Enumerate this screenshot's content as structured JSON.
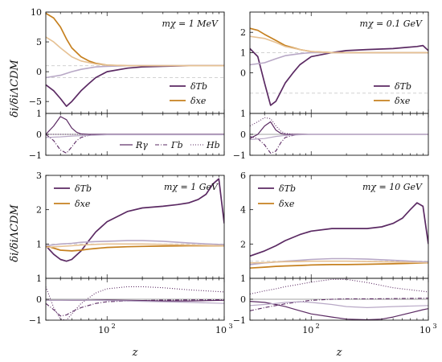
{
  "figure": {
    "ylabel_top": "δi/δiΛCDM",
    "ylabel_bottom": "δi/δiΛCDM",
    "xlabel": "z"
  },
  "colors": {
    "purple": "#5b2a63",
    "purple_light": "#b8a8c6",
    "orange": "#c6801f",
    "orange_light": "#e6c193",
    "ref_line": "#cccccc"
  },
  "chart_data": [
    {
      "type": "line",
      "panel": "top-left",
      "annotation": "mχ = 1 MeV",
      "x_scale": "log",
      "xlim": [
        30,
        1000
      ],
      "ylim": [
        -7,
        10
      ],
      "yticks": [
        -5,
        0,
        5,
        10
      ],
      "legend": "lower-right",
      "series": [
        {
          "name": "δTb",
          "style": "purple",
          "x": [
            30,
            35,
            40,
            45,
            50,
            60,
            70,
            80,
            100,
            150,
            200,
            300,
            500,
            1000
          ],
          "values": [
            -2.2,
            -3.2,
            -4.5,
            -5.8,
            -5.0,
            -3.2,
            -2.0,
            -1.0,
            0.0,
            0.6,
            0.8,
            0.9,
            1.0,
            1.0
          ]
        },
        {
          "name": "δxe",
          "style": "orange",
          "x": [
            30,
            35,
            40,
            45,
            50,
            60,
            70,
            80,
            100,
            150,
            200,
            300,
            500,
            1000
          ],
          "values": [
            9.8,
            9.0,
            7.5,
            5.5,
            4.0,
            2.5,
            1.8,
            1.4,
            1.1,
            1.0,
            1.0,
            1.0,
            1.0,
            1.0
          ]
        },
        {
          "name": "",
          "style": "purple_light",
          "x": [
            30,
            40,
            50,
            60,
            80,
            100,
            150,
            300,
            1000
          ],
          "values": [
            -1.0,
            -0.6,
            0.0,
            0.4,
            0.8,
            0.9,
            1.0,
            1.0,
            1.0
          ]
        },
        {
          "name": "",
          "style": "orange_light",
          "x": [
            30,
            35,
            40,
            50,
            60,
            80,
            100,
            150,
            300,
            1000
          ],
          "values": [
            5.8,
            5.0,
            4.0,
            2.5,
            1.8,
            1.3,
            1.1,
            1.0,
            1.0,
            1.0
          ]
        }
      ],
      "ref_lines": [
        1,
        -1
      ]
    },
    {
      "type": "line",
      "panel": "top-right",
      "annotation": "mχ = 0.1 GeV",
      "x_scale": "log",
      "xlim": [
        30,
        1000
      ],
      "ylim": [
        -2,
        3
      ],
      "yticks": [
        0,
        1,
        2
      ],
      "legend": "lower-right",
      "series": [
        {
          "name": "δTb",
          "style": "purple",
          "x": [
            30,
            35,
            40,
            45,
            50,
            60,
            70,
            80,
            100,
            150,
            200,
            300,
            500,
            800,
            900,
            1000
          ],
          "values": [
            1.2,
            0.8,
            -0.5,
            -1.6,
            -1.4,
            -0.5,
            0.0,
            0.4,
            0.8,
            1.0,
            1.1,
            1.15,
            1.2,
            1.3,
            1.35,
            1.1
          ]
        },
        {
          "name": "δxe",
          "style": "orange",
          "x": [
            30,
            35,
            40,
            50,
            60,
            80,
            100,
            150,
            200,
            300,
            1000
          ],
          "values": [
            2.2,
            2.1,
            1.9,
            1.6,
            1.35,
            1.15,
            1.05,
            1.0,
            1.0,
            1.0,
            1.0
          ]
        },
        {
          "name": "",
          "style": "purple_light",
          "x": [
            30,
            40,
            50,
            60,
            80,
            100,
            200,
            1000
          ],
          "values": [
            0.4,
            0.5,
            0.7,
            0.85,
            0.95,
            1.0,
            1.0,
            1.0
          ]
        },
        {
          "name": "",
          "style": "orange_light",
          "x": [
            30,
            40,
            50,
            60,
            80,
            100,
            150,
            1000
          ],
          "values": [
            1.8,
            1.7,
            1.5,
            1.3,
            1.15,
            1.05,
            1.0,
            1.0
          ]
        }
      ],
      "ref_lines": [
        1,
        -1
      ]
    },
    {
      "type": "line",
      "panel": "top-left-residual",
      "x_scale": "log",
      "xlim": [
        30,
        1000
      ],
      "ylim": [
        -1,
        1
      ],
      "yticks": [
        -1,
        0,
        1
      ],
      "legend": "bottom-right",
      "series": [
        {
          "name": "Rγ",
          "style": "solid",
          "x": [
            30,
            35,
            40,
            45,
            50,
            55,
            60,
            70,
            80,
            100,
            1000
          ],
          "values": [
            0.0,
            0.4,
            0.85,
            0.7,
            0.3,
            0.1,
            0.02,
            0.0,
            0.0,
            0.0,
            0.0
          ]
        },
        {
          "name": "Γb",
          "style": "dashdot",
          "x": [
            30,
            35,
            40,
            45,
            50,
            55,
            60,
            70,
            80,
            100,
            1000
          ],
          "values": [
            0.0,
            -0.3,
            -0.75,
            -0.9,
            -0.6,
            -0.3,
            -0.15,
            -0.05,
            0.0,
            0.0,
            0.0
          ]
        },
        {
          "name": "Hb",
          "style": "dotted",
          "x": [
            30,
            40,
            50,
            60,
            70,
            80,
            100,
            200,
            1000
          ],
          "values": [
            0.0,
            0.0,
            0.0,
            0.0,
            0.0,
            0.0,
            0.0,
            0.0,
            0.0
          ]
        },
        {
          "name": "",
          "style": "light",
          "x": [
            30,
            40,
            50,
            70,
            100,
            1000
          ],
          "values": [
            -0.15,
            -0.12,
            -0.08,
            -0.05,
            -0.02,
            -0.02
          ]
        }
      ]
    },
    {
      "type": "line",
      "panel": "top-right-residual",
      "x_scale": "log",
      "xlim": [
        30,
        1000
      ],
      "ylim": [
        -1,
        1
      ],
      "yticks": [
        -1,
        0,
        1
      ],
      "series": [
        {
          "name": "",
          "style": "solid",
          "x": [
            30,
            35,
            40,
            45,
            50,
            55,
            60,
            70,
            80,
            100,
            1000
          ],
          "values": [
            -0.2,
            0.0,
            0.4,
            0.6,
            0.2,
            0.05,
            0.0,
            0.0,
            0.0,
            0.0,
            0.0
          ]
        },
        {
          "name": "",
          "style": "dashdot",
          "x": [
            30,
            35,
            40,
            45,
            50,
            55,
            60,
            70,
            80,
            100,
            1000
          ],
          "values": [
            -0.1,
            -0.2,
            -0.5,
            -0.9,
            -0.8,
            -0.4,
            -0.15,
            -0.05,
            0.0,
            0.0,
            0.0
          ]
        },
        {
          "name": "",
          "style": "dotted",
          "x": [
            30,
            35,
            40,
            45,
            50,
            55,
            60,
            70,
            80,
            100,
            1000
          ],
          "values": [
            0.4,
            0.6,
            0.8,
            0.75,
            0.4,
            0.15,
            0.05,
            0.0,
            0.0,
            0.0,
            0.0
          ]
        },
        {
          "name": "",
          "style": "light",
          "x": [
            30,
            40,
            50,
            60,
            80,
            100,
            1000
          ],
          "values": [
            -0.25,
            -0.2,
            -0.1,
            -0.05,
            -0.02,
            0.0,
            0.0
          ]
        }
      ]
    },
    {
      "type": "line",
      "panel": "bottom-left",
      "annotation": "mχ = 1 GeV",
      "x_scale": "log",
      "xlim": [
        30,
        1000
      ],
      "ylim": [
        0,
        3
      ],
      "yticks": [
        1,
        2,
        3
      ],
      "legend": "upper-left",
      "series": [
        {
          "name": "δTb",
          "style": "purple",
          "x": [
            30,
            35,
            40,
            45,
            50,
            60,
            70,
            80,
            100,
            150,
            200,
            300,
            400,
            500,
            600,
            700,
            800,
            900,
            1000
          ],
          "values": [
            0.95,
            0.7,
            0.55,
            0.5,
            0.55,
            0.8,
            1.1,
            1.35,
            1.65,
            1.95,
            2.05,
            2.1,
            2.15,
            2.2,
            2.3,
            2.45,
            2.75,
            2.9,
            1.6
          ]
        },
        {
          "name": "δxe",
          "style": "orange",
          "x": [
            30,
            40,
            50,
            60,
            70,
            80,
            100,
            150,
            200,
            300,
            500,
            1000
          ],
          "values": [
            0.95,
            0.82,
            0.8,
            0.82,
            0.85,
            0.87,
            0.9,
            0.92,
            0.93,
            0.94,
            0.95,
            0.95
          ]
        },
        {
          "name": "",
          "style": "purple_light",
          "x": [
            30,
            40,
            50,
            60,
            80,
            100,
            150,
            200,
            300,
            500,
            1000
          ],
          "values": [
            0.95,
            1.0,
            1.02,
            1.05,
            1.07,
            1.08,
            1.1,
            1.1,
            1.08,
            1.03,
            0.98
          ]
        },
        {
          "name": "",
          "style": "orange_light",
          "x": [
            30,
            40,
            50,
            60,
            80,
            100,
            150,
            200,
            300,
            500,
            1000
          ],
          "values": [
            0.9,
            0.93,
            0.95,
            0.97,
            0.99,
            1.0,
            1.0,
            1.0,
            0.99,
            0.97,
            0.95
          ]
        }
      ],
      "ref_lines": [
        1
      ]
    },
    {
      "type": "line",
      "panel": "bottom-right",
      "annotation": "mχ = 10 GeV",
      "x_scale": "log",
      "xlim": [
        30,
        1000
      ],
      "ylim": [
        0,
        6
      ],
      "yticks": [
        2,
        4,
        6
      ],
      "legend": "upper-left",
      "series": [
        {
          "name": "δTb",
          "style": "purple",
          "x": [
            30,
            40,
            50,
            60,
            80,
            100,
            150,
            200,
            300,
            400,
            500,
            600,
            700,
            800,
            900,
            1000
          ],
          "values": [
            1.3,
            1.6,
            1.9,
            2.2,
            2.55,
            2.75,
            2.9,
            2.9,
            2.9,
            3.0,
            3.2,
            3.5,
            4.0,
            4.4,
            4.2,
            2.0
          ]
        },
        {
          "name": "δxe",
          "style": "orange",
          "x": [
            30,
            40,
            50,
            60,
            80,
            100,
            150,
            200,
            300,
            500,
            1000
          ],
          "values": [
            0.6,
            0.65,
            0.7,
            0.72,
            0.75,
            0.78,
            0.8,
            0.8,
            0.82,
            0.85,
            0.9
          ]
        },
        {
          "name": "",
          "style": "purple_light",
          "x": [
            30,
            40,
            50,
            60,
            80,
            100,
            150,
            200,
            300,
            500,
            1000
          ],
          "values": [
            0.8,
            0.9,
            0.95,
            1.0,
            1.05,
            1.1,
            1.15,
            1.15,
            1.12,
            1.05,
            0.95
          ]
        },
        {
          "name": "",
          "style": "orange_light",
          "x": [
            30,
            40,
            50,
            60,
            80,
            100,
            150,
            200,
            300,
            500,
            1000
          ],
          "values": [
            0.9,
            0.92,
            0.95,
            0.97,
            0.98,
            1.0,
            1.0,
            1.0,
            0.98,
            0.95,
            0.9
          ]
        }
      ],
      "ref_lines": [
        1
      ]
    },
    {
      "type": "line",
      "panel": "bottom-left-residual",
      "x_scale": "log",
      "xlim": [
        30,
        1000
      ],
      "ylim": [
        -1,
        1
      ],
      "yticks": [
        -1,
        0,
        1
      ],
      "series": [
        {
          "name": "",
          "style": "solid",
          "x": [
            30,
            40,
            50,
            60,
            80,
            100,
            150,
            200,
            300,
            500,
            1000
          ],
          "values": [
            -0.05,
            -0.05,
            -0.05,
            -0.05,
            -0.04,
            -0.04,
            -0.05,
            -0.06,
            -0.08,
            -0.08,
            -0.05
          ]
        },
        {
          "name": "",
          "style": "dashdot",
          "x": [
            30,
            35,
            40,
            45,
            50,
            60,
            80,
            100,
            150,
            200,
            300,
            500,
            1000
          ],
          "values": [
            -0.2,
            -0.5,
            -0.8,
            -0.75,
            -0.6,
            -0.4,
            -0.2,
            -0.12,
            -0.08,
            -0.06,
            -0.04,
            -0.03,
            -0.02
          ]
        },
        {
          "name": "",
          "style": "dotted",
          "x": [
            30,
            35,
            40,
            45,
            50,
            60,
            80,
            100,
            150,
            200,
            300,
            500,
            1000
          ],
          "values": [
            0.6,
            -0.4,
            -0.95,
            -1.0,
            -0.7,
            -0.2,
            0.3,
            0.5,
            0.6,
            0.6,
            0.55,
            0.45,
            0.35
          ]
        },
        {
          "name": "",
          "style": "light",
          "x": [
            30,
            40,
            50,
            60,
            80,
            100,
            150,
            200,
            300,
            500,
            1000
          ],
          "values": [
            -0.05,
            -0.05,
            -0.04,
            -0.04,
            -0.05,
            -0.06,
            -0.08,
            -0.1,
            -0.12,
            -0.15,
            -0.2
          ]
        }
      ]
    },
    {
      "type": "line",
      "panel": "bottom-right-residual",
      "x_scale": "log",
      "xlim": [
        30,
        1000
      ],
      "ylim": [
        -1,
        1
      ],
      "yticks": [
        -1,
        0,
        1
      ],
      "series": [
        {
          "name": "",
          "style": "solid",
          "x": [
            30,
            40,
            50,
            60,
            80,
            100,
            150,
            200,
            300,
            400,
            500,
            700,
            900,
            1000
          ],
          "values": [
            -0.1,
            -0.15,
            -0.25,
            -0.35,
            -0.55,
            -0.7,
            -0.85,
            -0.95,
            -0.98,
            -0.95,
            -0.85,
            -0.65,
            -0.5,
            -0.45
          ]
        },
        {
          "name": "",
          "style": "dashdot",
          "x": [
            30,
            40,
            50,
            60,
            80,
            100,
            150,
            200,
            300,
            500,
            1000
          ],
          "values": [
            -0.55,
            -0.4,
            -0.3,
            -0.22,
            -0.12,
            -0.05,
            0.0,
            0.02,
            0.02,
            0.03,
            0.05
          ]
        },
        {
          "name": "",
          "style": "dotted",
          "x": [
            30,
            40,
            50,
            60,
            80,
            100,
            150,
            200,
            300,
            500,
            1000
          ],
          "values": [
            0.25,
            0.4,
            0.5,
            0.6,
            0.72,
            0.82,
            0.95,
            0.95,
            0.8,
            0.55,
            0.35
          ]
        },
        {
          "name": "",
          "style": "light",
          "x": [
            30,
            40,
            50,
            60,
            80,
            100,
            150,
            200,
            300,
            500,
            1000
          ],
          "values": [
            -0.3,
            -0.25,
            -0.2,
            -0.15,
            -0.12,
            -0.15,
            -0.25,
            -0.35,
            -0.4,
            -0.35,
            -0.3
          ]
        }
      ]
    }
  ],
  "x_tick_labels": {
    "t1": "10",
    "t1sup": "2",
    "t2": "10",
    "t2sup": "3"
  }
}
